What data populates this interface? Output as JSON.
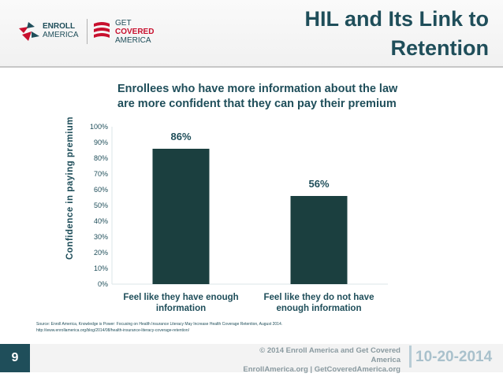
{
  "header": {
    "logo_left": {
      "line1": "ENROLL",
      "line2": "AMERICA"
    },
    "logo_right": {
      "line1": "GET",
      "line2": "COVERED",
      "line3": "AMERICA"
    },
    "title_line1": "HIL and Its Link to",
    "title_line2": "Retention"
  },
  "chart_data": {
    "type": "bar",
    "title": "Enrollees who have more information about the law are more confident that they can pay their premium",
    "title_line1": "Enrollees who have more information about the law",
    "title_line2": "are more confident that they can pay their premium",
    "ylabel": "Confidence in paying premium",
    "categories": [
      [
        "Feel like they have enough",
        "information"
      ],
      [
        "Feel like they do not have",
        "enough information"
      ]
    ],
    "values": [
      86,
      56
    ],
    "data_labels": [
      "86%",
      "56%"
    ],
    "ylim": [
      0,
      100
    ],
    "yticks": [
      "0%",
      "10%",
      "20%",
      "30%",
      "40%",
      "50%",
      "60%",
      "70%",
      "80%",
      "90%",
      "100%"
    ],
    "colors": {
      "bar": "#1b3f3f",
      "text": "#1f4e5a",
      "axis": "#dbe6ea"
    }
  },
  "source": {
    "line1": "Source: Enroll America, Knowledge is Power: Focusing on Health Insurance Literacy May Increase Health Coverage Retention, August 2014.",
    "line2": "http://www.enrollamerica.org/blog/2014/08/health-insurance-literacy-coverage-retention/"
  },
  "footer": {
    "page_number": "9",
    "copyright": "© 2014 Enroll America and Get Covered America",
    "sites": "EnrollAmerica.org | GetCoveredAmerica.org",
    "date": "10-20-2014"
  }
}
